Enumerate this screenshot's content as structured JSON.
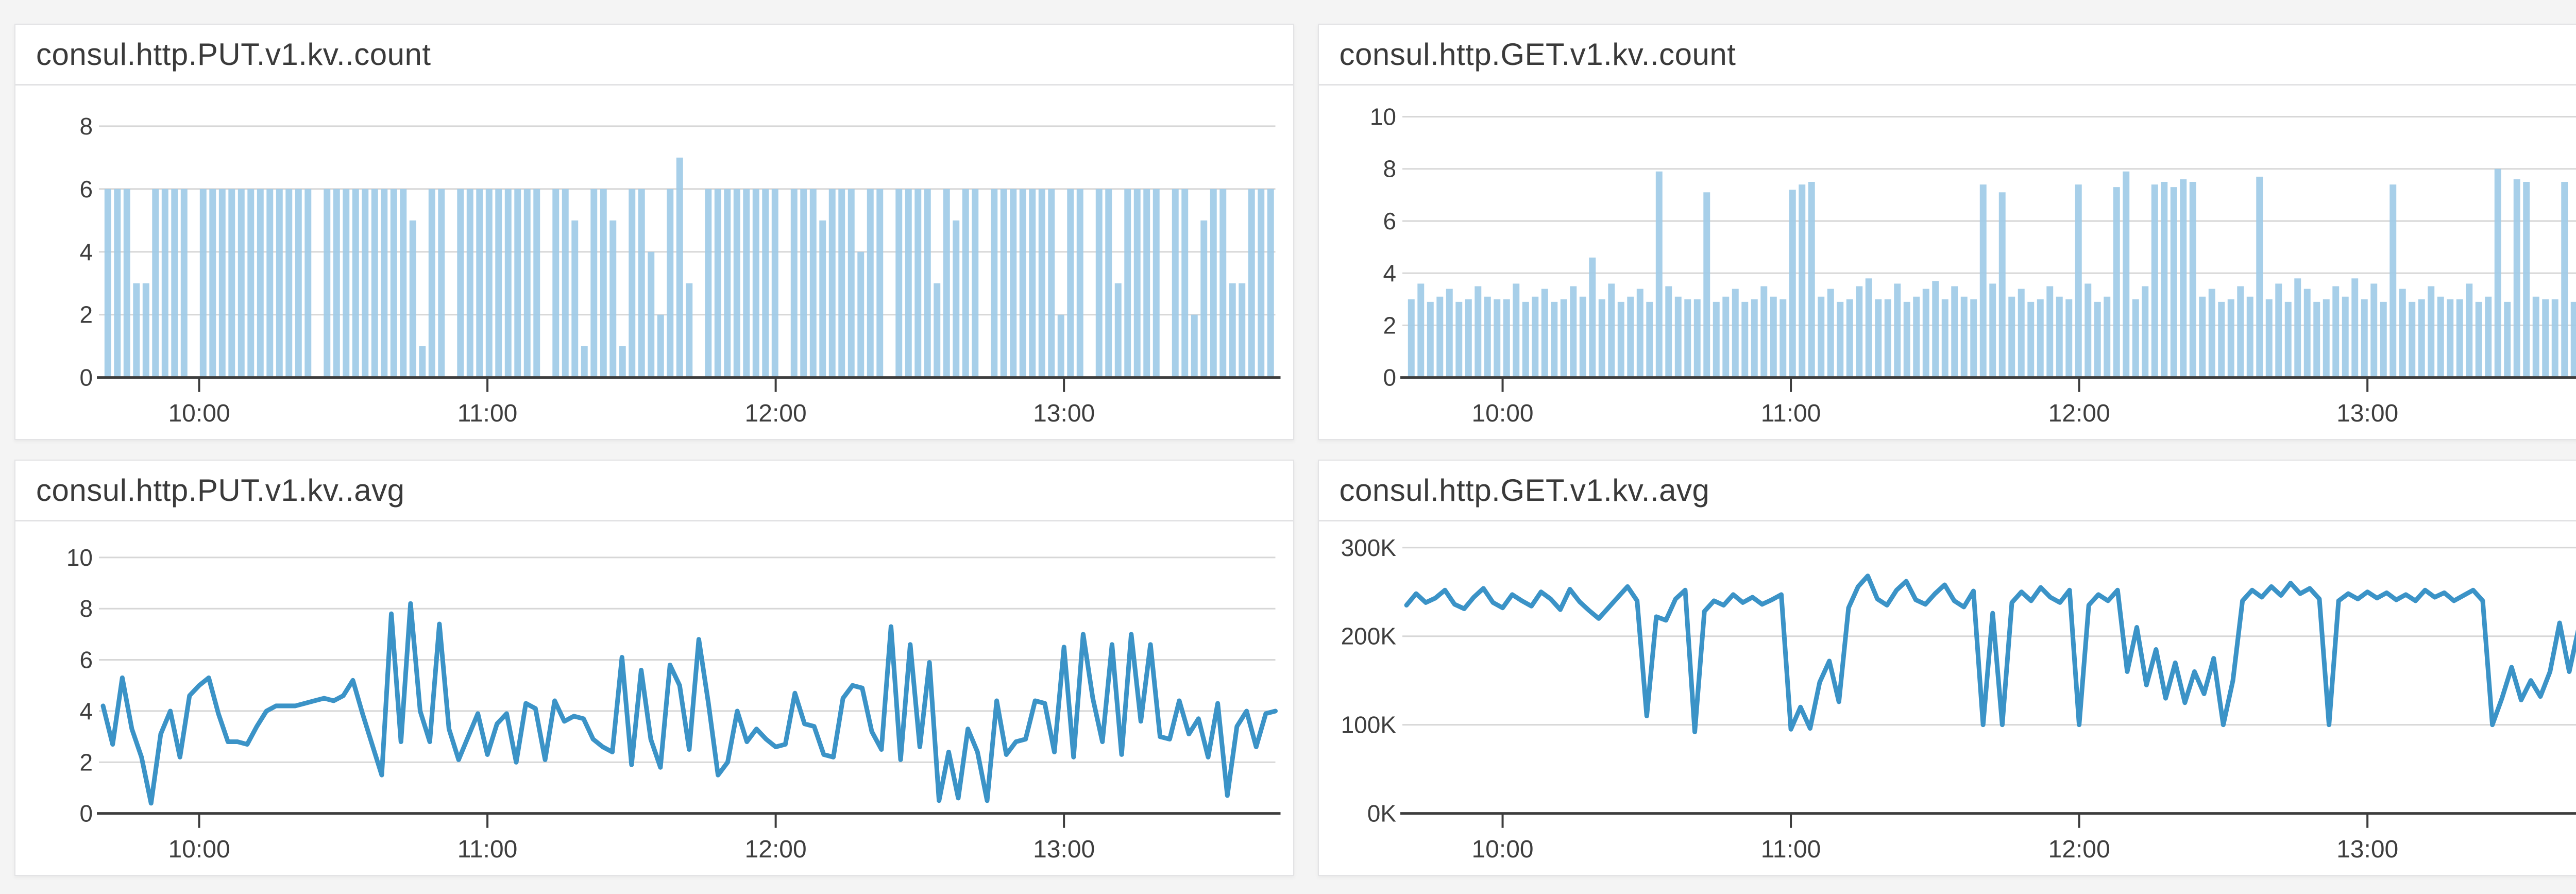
{
  "app": {
    "description": "Metrics dashboard showing four consul HTTP kv time-series panels"
  },
  "colors": {
    "page_bg": "#f4f4f4",
    "panel_bg": "#ffffff",
    "panel_border": "#e3e3e5",
    "header_divider": "#e2e2e4",
    "bar_fill": "#9fcbe7",
    "line_stroke": "#3b93c7",
    "gridline": "#d7d7d7",
    "axis": "#3d3d3d",
    "tick_text": "#3e3e3e",
    "title_text": "#3a3a3a"
  },
  "chart_data": [
    {
      "type": "bar",
      "title": "consul.http.PUT.v1.kv..count",
      "xlabel": "",
      "ylabel": "",
      "yticks": [
        0,
        2,
        4,
        6,
        8
      ],
      "ytick_suffix": "",
      "ylim": [
        0,
        8.8
      ],
      "x_tick_labels": [
        "10:00",
        "11:00",
        "12:00",
        "13:00"
      ],
      "x_tick_minutes": [
        20,
        80,
        140,
        200
      ],
      "x_start": "09:40",
      "x_step_minutes": 2,
      "span_minutes": 244,
      "grid": true,
      "legend": "none",
      "values": [
        6,
        6,
        6,
        3,
        3,
        6,
        6,
        6,
        6,
        0,
        6,
        6,
        6,
        6,
        6,
        6,
        6,
        6,
        6,
        6,
        6,
        6,
        0,
        6,
        6,
        6,
        6,
        6,
        6,
        6,
        6,
        6,
        5,
        1,
        6,
        6,
        0,
        6,
        6,
        6,
        6,
        6,
        6,
        6,
        6,
        6,
        0,
        6,
        6,
        5,
        1,
        6,
        6,
        5,
        1,
        6,
        6,
        4,
        2,
        6,
        7,
        3,
        0,
        6,
        6,
        6,
        6,
        6,
        6,
        6,
        6,
        0,
        6,
        6,
        6,
        5,
        6,
        6,
        6,
        4,
        6,
        6,
        0,
        6,
        6,
        6,
        6,
        3,
        6,
        5,
        6,
        6,
        0,
        6,
        6,
        6,
        6,
        6,
        6,
        6,
        2,
        6,
        6,
        0,
        6,
        6,
        3,
        6,
        6,
        6,
        6,
        0,
        6,
        6,
        2,
        5,
        6,
        6,
        3,
        3,
        6,
        6,
        6
      ]
    },
    {
      "type": "bar",
      "title": "consul.http.GET.v1.kv..count",
      "xlabel": "",
      "ylabel": "",
      "yticks": [
        0,
        2,
        4,
        6,
        8,
        10
      ],
      "ytick_suffix": "",
      "ylim": [
        0,
        10.6
      ],
      "x_tick_labels": [
        "10:00",
        "11:00",
        "12:00",
        "13:00"
      ],
      "x_tick_minutes": [
        20,
        80,
        140,
        200
      ],
      "x_start": "09:40",
      "x_step_minutes": 2,
      "span_minutes": 244,
      "grid": true,
      "legend": "none",
      "values": [
        3.0,
        3.6,
        2.9,
        3.1,
        3.4,
        2.9,
        3.0,
        3.5,
        3.1,
        3.0,
        3.0,
        3.6,
        2.9,
        3.1,
        3.4,
        2.9,
        3.0,
        3.5,
        3.1,
        4.6,
        3.0,
        3.6,
        2.9,
        3.1,
        3.4,
        2.9,
        7.9,
        3.5,
        3.1,
        3.0,
        3.0,
        7.1,
        2.9,
        3.1,
        3.4,
        2.9,
        3.0,
        3.5,
        3.1,
        3.0,
        7.2,
        7.4,
        7.5,
        3.1,
        3.4,
        2.9,
        3.0,
        3.5,
        3.8,
        3.0,
        3.0,
        3.6,
        2.9,
        3.1,
        3.4,
        3.7,
        3.0,
        3.5,
        3.1,
        3.0,
        7.4,
        3.6,
        7.1,
        3.1,
        3.4,
        2.9,
        3.0,
        3.5,
        3.1,
        3.0,
        7.4,
        3.6,
        2.9,
        3.1,
        7.3,
        7.9,
        3.0,
        3.5,
        7.4,
        7.5,
        7.3,
        7.6,
        7.5,
        3.1,
        3.4,
        2.9,
        3.0,
        3.5,
        3.1,
        7.7,
        3.0,
        3.6,
        2.9,
        3.8,
        3.4,
        2.9,
        3.0,
        3.5,
        3.1,
        3.8,
        3.0,
        3.6,
        2.9,
        7.4,
        3.4,
        2.9,
        3.0,
        3.5,
        3.1,
        3.0,
        3.0,
        3.6,
        2.9,
        3.1,
        8.0,
        2.9,
        7.6,
        7.5,
        3.1,
        3.0,
        3.0,
        7.5,
        2.9
      ]
    },
    {
      "type": "line",
      "title": "consul.http.PUT.v1.kv..avg",
      "xlabel": "",
      "ylabel": "",
      "yticks": [
        0,
        2,
        4,
        6,
        8,
        10
      ],
      "ytick_suffix": "",
      "ylim": [
        0,
        10.8
      ],
      "x_tick_labels": [
        "10:00",
        "11:00",
        "12:00",
        "13:00"
      ],
      "x_tick_minutes": [
        20,
        80,
        140,
        200
      ],
      "x_start": "09:40",
      "x_step_minutes": 2,
      "span_minutes": 244,
      "grid": true,
      "legend": "none",
      "values": [
        4.2,
        2.7,
        5.3,
        3.3,
        2.2,
        0.4,
        3.1,
        4.0,
        2.2,
        4.6,
        5.0,
        5.3,
        3.9,
        2.8,
        2.8,
        2.7,
        3.4,
        4.0,
        4.2,
        4.2,
        4.2,
        4.3,
        4.4,
        4.5,
        4.4,
        4.6,
        5.2,
        3.9,
        2.7,
        1.5,
        7.8,
        2.8,
        8.2,
        4.0,
        2.8,
        7.4,
        3.3,
        2.1,
        3.0,
        3.9,
        2.3,
        3.5,
        3.9,
        2.0,
        4.3,
        4.1,
        2.1,
        4.4,
        3.6,
        3.8,
        3.7,
        2.9,
        2.6,
        2.4,
        6.1,
        1.9,
        5.6,
        2.9,
        1.8,
        5.8,
        5.0,
        2.5,
        6.8,
        4.3,
        1.5,
        2.0,
        4.0,
        2.8,
        3.3,
        2.9,
        2.6,
        2.7,
        4.7,
        3.5,
        3.4,
        2.3,
        2.2,
        4.5,
        5.0,
        4.9,
        3.2,
        2.5,
        7.3,
        2.1,
        6.6,
        2.6,
        5.9,
        0.5,
        2.4,
        0.6,
        3.3,
        2.4,
        0.5,
        4.4,
        2.3,
        2.8,
        2.9,
        4.4,
        4.3,
        2.4,
        6.5,
        2.2,
        7.0,
        4.5,
        2.8,
        6.6,
        2.3,
        7.0,
        3.6,
        6.6,
        3.0,
        2.9,
        4.4,
        3.1,
        3.7,
        2.2,
        4.3,
        0.7,
        3.4,
        4.0,
        2.6,
        3.9,
        4.0
      ]
    },
    {
      "type": "line",
      "title": "consul.http.GET.v1.kv..avg",
      "xlabel": "",
      "ylabel": "",
      "yticks": [
        0,
        100,
        200,
        300
      ],
      "ytick_suffix": "K",
      "ylim": [
        0,
        312
      ],
      "x_tick_labels": [
        "10:00",
        "11:00",
        "12:00",
        "13:00"
      ],
      "x_tick_minutes": [
        20,
        80,
        140,
        200
      ],
      "x_start": "09:40",
      "x_step_minutes": 2,
      "span_minutes": 244,
      "grid": true,
      "legend": "none",
      "values": [
        235,
        248,
        238,
        243,
        252,
        236,
        231,
        244,
        254,
        238,
        232,
        247,
        240,
        234,
        250,
        242,
        230,
        253,
        239,
        229,
        220,
        232,
        244,
        256,
        240,
        110,
        222,
        218,
        242,
        252,
        92,
        228,
        240,
        235,
        247,
        238,
        244,
        236,
        241,
        247,
        95,
        120,
        96,
        148,
        172,
        126,
        232,
        256,
        268,
        242,
        235,
        252,
        262,
        241,
        236,
        248,
        258,
        240,
        233,
        251,
        100,
        226,
        100,
        238,
        250,
        240,
        255,
        244,
        238,
        252,
        100,
        235,
        247,
        240,
        252,
        160,
        210,
        145,
        185,
        130,
        170,
        125,
        160,
        135,
        175,
        100,
        150,
        240,
        252,
        244,
        256,
        246,
        260,
        248,
        254,
        242,
        100,
        240,
        248,
        242,
        250,
        243,
        249,
        241,
        247,
        240,
        252,
        244,
        249,
        240,
        246,
        252,
        240,
        100,
        130,
        165,
        128,
        150,
        132,
        160,
        215,
        160,
        210
      ]
    }
  ]
}
